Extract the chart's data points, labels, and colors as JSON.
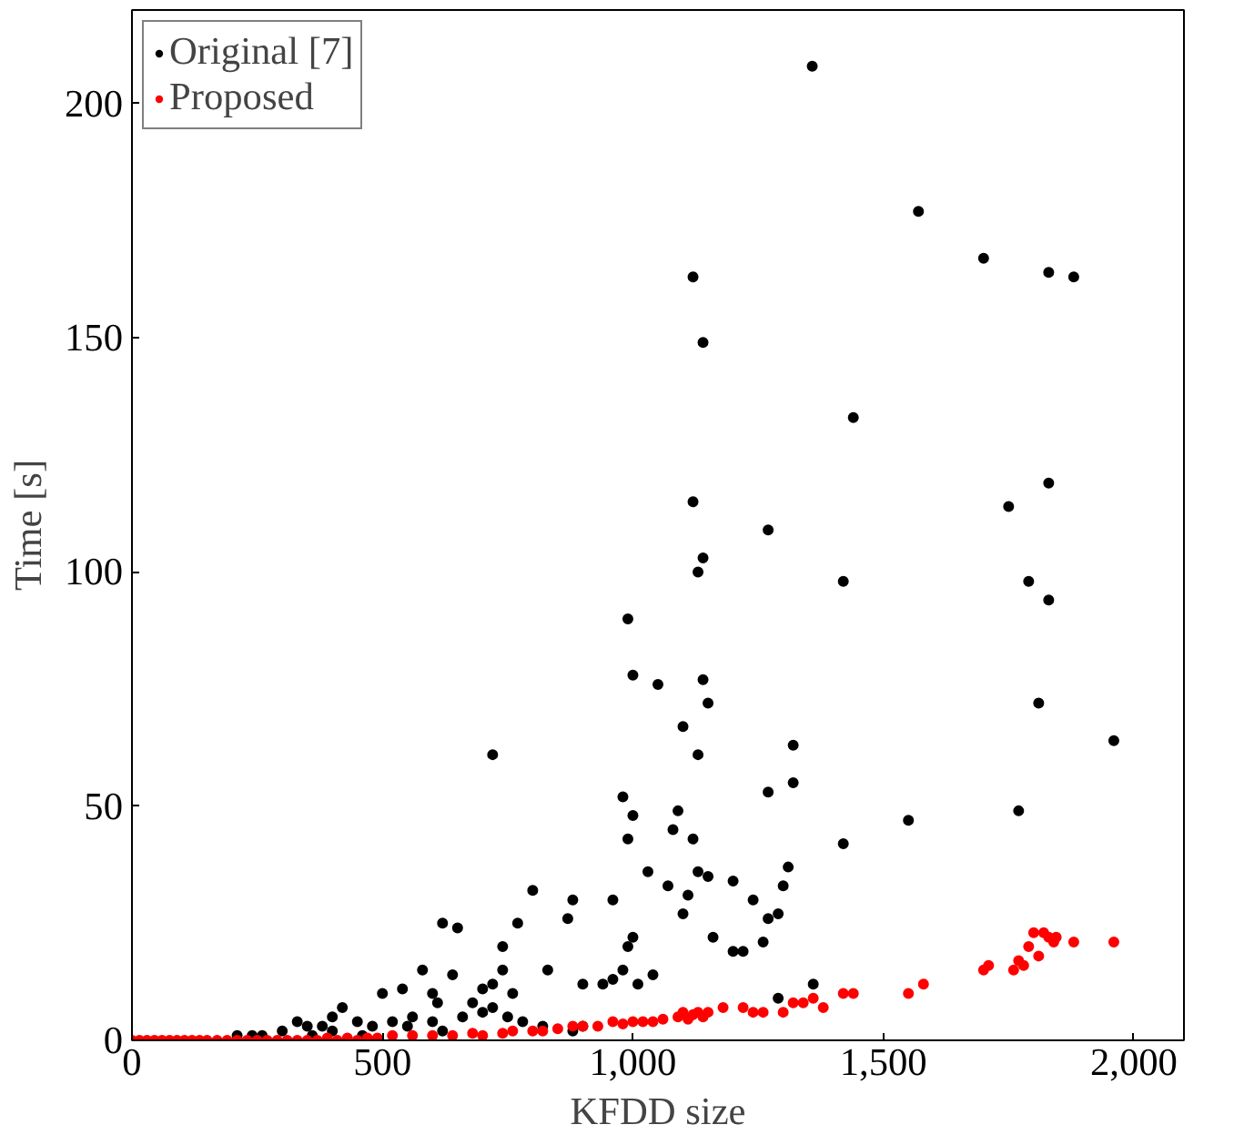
{
  "chart_data": {
    "type": "scatter",
    "xlabel": "KFDD size",
    "ylabel": "Time [s]",
    "xlim": [
      0,
      2100
    ],
    "ylim": [
      0,
      220
    ],
    "xticks": [
      0,
      500,
      {
        "value": 1000,
        "label": "1,000"
      },
      {
        "value": 1500,
        "label": "1,500"
      },
      {
        "value": 2000,
        "label": "2,000"
      }
    ],
    "yticks": [
      0,
      50,
      100,
      150,
      200
    ],
    "grid": false,
    "legend": "top left",
    "marker": "circle",
    "series": [
      {
        "name": "Original [7]",
        "color": "#000000",
        "x": [
          1358,
          1570,
          1700,
          1830,
          1880,
          1120,
          1140,
          1440,
          1830,
          1120,
          1750,
          1270,
          1140,
          1130,
          1790,
          1420,
          1830,
          990,
          1000,
          1050,
          1140,
          1150,
          1810,
          1100,
          1960,
          1320,
          1130,
          720,
          1270,
          980,
          1320,
          1000,
          1090,
          990,
          1120,
          1080,
          1770,
          1550,
          1420,
          1310,
          1130,
          1150,
          1030,
          1200,
          1110,
          1300,
          1240,
          960,
          1070,
          800,
          880,
          1290,
          1270,
          1000,
          990,
          1100,
          1160,
          1220,
          1200,
          1260,
          1040,
          1010,
          870,
          770,
          650,
          620,
          740,
          720,
          740,
          700,
          940,
          960,
          980,
          1360,
          1290,
          900,
          760,
          830,
          640,
          580,
          540,
          500,
          600,
          610,
          680,
          560,
          520,
          480,
          450,
          420,
          400,
          380,
          350,
          330,
          300,
          260,
          240,
          210,
          550,
          600,
          660,
          700,
          720,
          750,
          780,
          820,
          880,
          900,
          620,
          460,
          400,
          360
        ],
        "values": [
          208,
          177,
          167,
          164,
          163,
          163,
          149,
          133,
          119,
          115,
          114,
          109,
          103,
          100,
          98,
          98,
          94,
          90,
          78,
          76,
          77,
          72,
          72,
          67,
          64,
          63,
          61,
          61,
          53,
          52,
          55,
          48,
          49,
          43,
          43,
          45,
          49,
          47,
          42,
          37,
          36,
          35,
          36,
          34,
          31,
          33,
          30,
          30,
          33,
          32,
          30,
          27,
          26,
          22,
          20,
          27,
          22,
          19,
          19,
          21,
          14,
          12,
          26,
          25,
          24,
          25,
          20,
          12,
          15,
          11,
          12,
          13,
          15,
          12,
          9,
          12,
          10,
          15,
          14,
          15,
          11,
          10,
          10,
          8,
          8,
          5,
          4,
          3,
          4,
          7,
          5,
          3,
          3,
          4,
          2,
          1,
          1,
          1,
          3,
          4,
          5,
          6,
          7,
          5,
          4,
          3,
          2,
          3,
          2,
          1,
          2,
          1
        ]
      },
      {
        "name": "Proposed",
        "color": "#ff0000",
        "x": [
          0,
          15,
          30,
          45,
          60,
          75,
          90,
          105,
          120,
          135,
          150,
          170,
          190,
          210,
          230,
          250,
          270,
          290,
          310,
          330,
          350,
          370,
          390,
          410,
          430,
          450,
          470,
          490,
          520,
          560,
          600,
          640,
          680,
          700,
          740,
          760,
          800,
          820,
          850,
          880,
          900,
          930,
          960,
          980,
          1000,
          1020,
          1040,
          1060,
          1090,
          1100,
          1110,
          1120,
          1130,
          1140,
          1150,
          1180,
          1220,
          1240,
          1260,
          1300,
          1320,
          1340,
          1360,
          1380,
          1420,
          1440,
          1550,
          1580,
          1700,
          1710,
          1760,
          1770,
          1780,
          1790,
          1800,
          1820,
          1810,
          1830,
          1840,
          1845,
          1880,
          1960
        ],
        "values": [
          0,
          0,
          0,
          0,
          0,
          0,
          0,
          0,
          0,
          0,
          0,
          0,
          0,
          0,
          0,
          0,
          0,
          0,
          0,
          0,
          0,
          0,
          0.5,
          0,
          0.5,
          0,
          0.5,
          0.5,
          1,
          1,
          1,
          1,
          1.5,
          1,
          1.5,
          2,
          2,
          2,
          2.5,
          3,
          3,
          3,
          4,
          3.5,
          4,
          4,
          4,
          4.5,
          5,
          6,
          4.5,
          5.5,
          6,
          5,
          6,
          7,
          7,
          6,
          6,
          6,
          8,
          8,
          9,
          7,
          10,
          10,
          10,
          12,
          15,
          16,
          15,
          17,
          16,
          20,
          23,
          23,
          18,
          22,
          21,
          22,
          21,
          21
        ]
      }
    ]
  }
}
